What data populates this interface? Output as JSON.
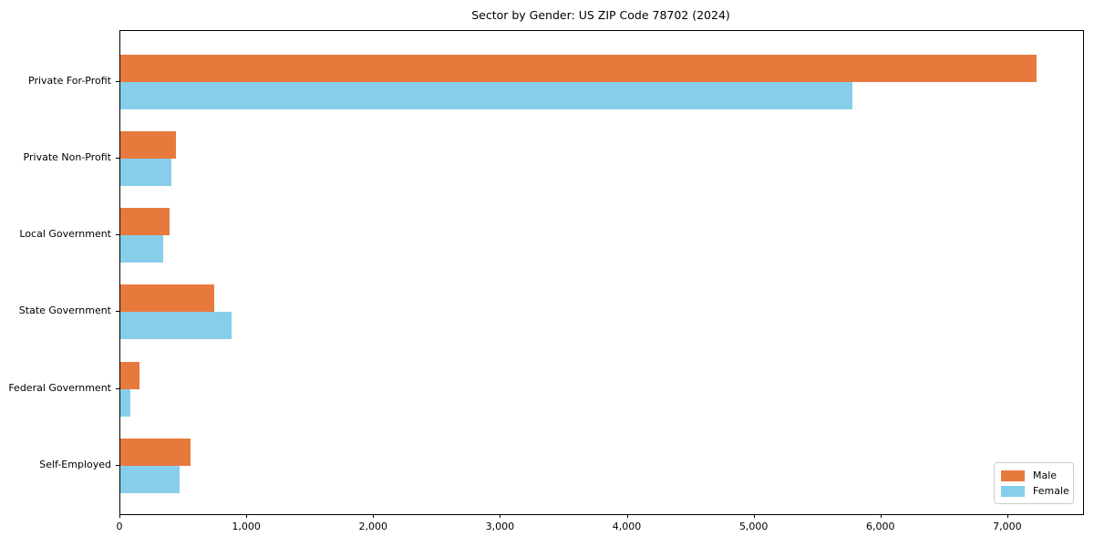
{
  "figure": {
    "title": "Sector by Gender: US ZIP Code 78702 (2024)",
    "background_color": "#ffffff",
    "spine_color": "#000000",
    "text_color": "#000000"
  },
  "chart_data": {
    "type": "bar",
    "orientation": "horizontal",
    "title": "Sector by Gender: US ZIP Code 78702 (2024)",
    "categories": [
      "Private For-Profit",
      "Private Non-Profit",
      "Local Government",
      "State Government",
      "Federal Government",
      "Self-Employed"
    ],
    "series": [
      {
        "name": "Male",
        "color": "#E8793D",
        "values": [
          7220,
          440,
          385,
          740,
          150,
          550
        ]
      },
      {
        "name": "Female",
        "color": "#87CEEB",
        "values": [
          5770,
          400,
          335,
          880,
          78,
          470
        ]
      }
    ],
    "xlabel": "",
    "ylabel": "",
    "xlim": [
      0,
      7590
    ],
    "xticks": [
      0,
      1000,
      2000,
      3000,
      4000,
      5000,
      6000,
      7000
    ],
    "xtick_labels": [
      "0",
      "1,000",
      "2,000",
      "3,000",
      "4,000",
      "5,000",
      "6,000",
      "7,000"
    ],
    "grid": false,
    "legend": {
      "position": "lower-right",
      "entries": [
        "Male",
        "Female"
      ]
    }
  }
}
